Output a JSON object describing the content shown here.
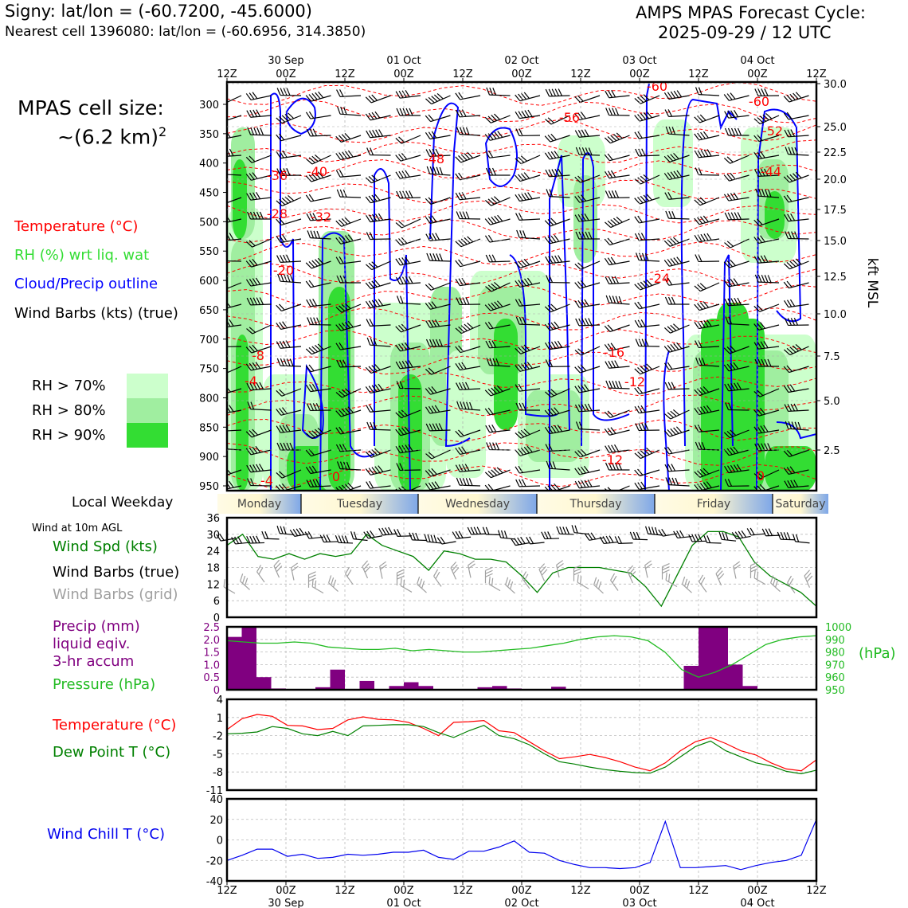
{
  "header": {
    "station_line": "Signy: lat/lon = (-60.7200, -45.6000)",
    "cell_line": "Nearest cell 1396080: lat/lon = (-60.6956, 314.3850)",
    "forecast_title": "AMPS MPAS Forecast Cycle:",
    "cycle": "2025-09-29 / 12 UTC"
  },
  "left_panel": {
    "cell_size_label": "MPAS cell size:",
    "cell_size_value": "~(6.2 km)",
    "cell_size_exp": "2",
    "legend": {
      "temperature": "Temperature (°C)",
      "rh": "RH (%) wrt liq. wat",
      "cloud": "Cloud/Precip outline",
      "barbs": "Wind Barbs (kts) (true)"
    },
    "rh_levels": [
      "RH > 70%",
      "RH > 80%",
      "RH > 90%"
    ],
    "weekday_label": "Local Weekday",
    "wind10_title": "Wind at 10m AGL",
    "wind_legend": [
      "Wind Spd (kts)",
      "Wind Barbs (true)",
      "Wind Barbs (grid)"
    ],
    "precip_legend": [
      "Precip (mm)",
      "liquid eqiv.",
      "3-hr accum"
    ],
    "pressure_legend": "Pressure (hPa)",
    "temp_legend": [
      "Temperature (°C)",
      "Dew Point T (°C)"
    ],
    "windchill_legend": "Wind Chill T (°C)"
  },
  "colors": {
    "temperature": "#ff0000",
    "rh_legend_text": "#33dd33",
    "cloud": "#0000ff",
    "rh70": "#ccffcc",
    "rh80": "#a0eea0",
    "rh90": "#33dd33",
    "precip": "#800080",
    "pressure": "#22bb22",
    "dewpoint": "#008000",
    "windchill": "#0000ee",
    "grid_barbs": "#a0a0a0"
  },
  "time_axis": {
    "hour_labels": [
      "12Z",
      "00Z",
      "12Z",
      "00Z",
      "12Z",
      "00Z",
      "12Z",
      "00Z",
      "12Z",
      "00Z",
      "12Z"
    ],
    "date_labels": [
      "30 Sep",
      "01 Oct",
      "02 Oct",
      "03 Oct",
      "04 Oct"
    ],
    "weekdays": [
      "Monday",
      "Tuesday",
      "Wednesday",
      "Thursday",
      "Friday",
      "Saturday"
    ]
  },
  "chart_data": [
    {
      "type": "heatmap",
      "name": "vertical_cross_section",
      "y_pressure_ticks": [
        "300",
        "350",
        "400",
        "450",
        "500",
        "550",
        "600",
        "650",
        "700",
        "750",
        "800",
        "850",
        "900",
        "950"
      ],
      "y_kft_ticks": [
        "30.0",
        "25.0",
        "22.5",
        "20.0",
        "17.5",
        "15.0",
        "12.5",
        "10.0",
        "7.5",
        "5.0",
        "2.5"
      ],
      "y_right_label": "kft MSL",
      "temperature_labels": [
        "-60",
        "-60",
        "-56",
        "-52",
        "-48",
        "-44",
        "-40",
        "-36",
        "-32",
        "-28",
        "-24",
        "-20",
        "-16",
        "-12",
        "-12",
        "-8",
        "-4",
        "-4",
        "0",
        "0"
      ]
    },
    {
      "type": "line",
      "name": "wind_speed_10m",
      "ylim": [
        0,
        36
      ],
      "yticks": [
        "0",
        "6",
        "12",
        "18",
        "24",
        "30",
        "36"
      ],
      "values": [
        26,
        30,
        22,
        21,
        23,
        21,
        23,
        22,
        23,
        30,
        26,
        24,
        22,
        17,
        24,
        23,
        21,
        21,
        20,
        15,
        9,
        16,
        18,
        18,
        18,
        17,
        16,
        11,
        4,
        15,
        26,
        31,
        31,
        29,
        20,
        15,
        12,
        9,
        4
      ]
    },
    {
      "type": "bar",
      "name": "precip_3hr",
      "ylim_left": [
        0,
        2.5
      ],
      "yticks_left": [
        "0",
        "0.5",
        "1.0",
        "1.5",
        "2.0",
        "2.5"
      ],
      "yticks_right": [
        "950",
        "960",
        "970",
        "980",
        "990",
        "1000"
      ],
      "right_unit": "(hPa)",
      "values": [
        2.1,
        2.5,
        0.5,
        0.05,
        0,
        0,
        0.1,
        0.8,
        0,
        0.35,
        0,
        0.15,
        0.3,
        0.15,
        0,
        0,
        0,
        0.1,
        0.15,
        0.05,
        0,
        0,
        0.12,
        0,
        0,
        0,
        0,
        0,
        0,
        0,
        0,
        0.95,
        2.5,
        2.5,
        1.0,
        0.15,
        0,
        0,
        0,
        0
      ],
      "pressure_values": [
        989,
        988,
        987,
        987,
        988,
        987,
        984,
        983,
        982,
        982,
        983,
        981,
        982,
        981,
        980,
        980,
        981,
        982,
        983,
        985,
        987,
        990,
        992,
        993,
        992,
        989,
        980,
        966,
        960,
        964,
        970,
        978,
        986,
        990,
        992,
        993
      ]
    },
    {
      "type": "line",
      "name": "temperature_dewpoint",
      "ylim": [
        -11,
        4
      ],
      "yticks": [
        "4",
        "1",
        "-2",
        "-5",
        "-8",
        "-11"
      ],
      "series": [
        {
          "name": "Temperature (°C)",
          "values": [
            -1,
            0.8,
            1.5,
            1.2,
            -0.3,
            -0.4,
            -1,
            -0.8,
            0.6,
            1.1,
            0.7,
            0.6,
            0.2,
            -0.8,
            -2,
            0.2,
            0.3,
            0.5,
            -1.2,
            -1.5,
            -3,
            -4.5,
            -5.8,
            -5.5,
            -5.1,
            -5.6,
            -6.3,
            -7.2,
            -7.8,
            -6.5,
            -4.5,
            -3,
            -2.3,
            -3.3,
            -4.5,
            -5.2,
            -6.5,
            -7.5,
            -7.8,
            -6
          ]
        },
        {
          "name": "Dew Point T (°C)",
          "values": [
            -1.7,
            -1.6,
            -1.4,
            -0.5,
            -0.8,
            -1.7,
            -2,
            -1.3,
            -2,
            -0.4,
            -0.3,
            -0.2,
            -0.2,
            -0.5,
            -1.5,
            -2.3,
            -1.2,
            -0.3,
            -2,
            -2.5,
            -3.5,
            -5,
            -6.3,
            -6.7,
            -7.2,
            -7.6,
            -7.9,
            -8.1,
            -8.2,
            -7.2,
            -5.5,
            -3.8,
            -2.9,
            -4.5,
            -5.5,
            -6.5,
            -7,
            -7.9,
            -8.3,
            -7.7
          ]
        }
      ]
    },
    {
      "type": "line",
      "name": "wind_chill",
      "ylim": [
        -40,
        40
      ],
      "yticks": [
        "40",
        "20",
        "0",
        "-20",
        "-40"
      ],
      "values": [
        -20,
        -15,
        -9,
        -9,
        -16,
        -14,
        -18,
        -17,
        -14,
        -15,
        -14,
        -12,
        -12,
        -10,
        -17,
        -19,
        -11,
        -11,
        -7,
        -1,
        -12,
        -13,
        -20,
        -24,
        -27,
        -27,
        -28,
        -27,
        -22,
        18,
        -27,
        -27,
        -26,
        -25,
        -29,
        -25,
        -22,
        -20,
        -15,
        20
      ]
    }
  ]
}
